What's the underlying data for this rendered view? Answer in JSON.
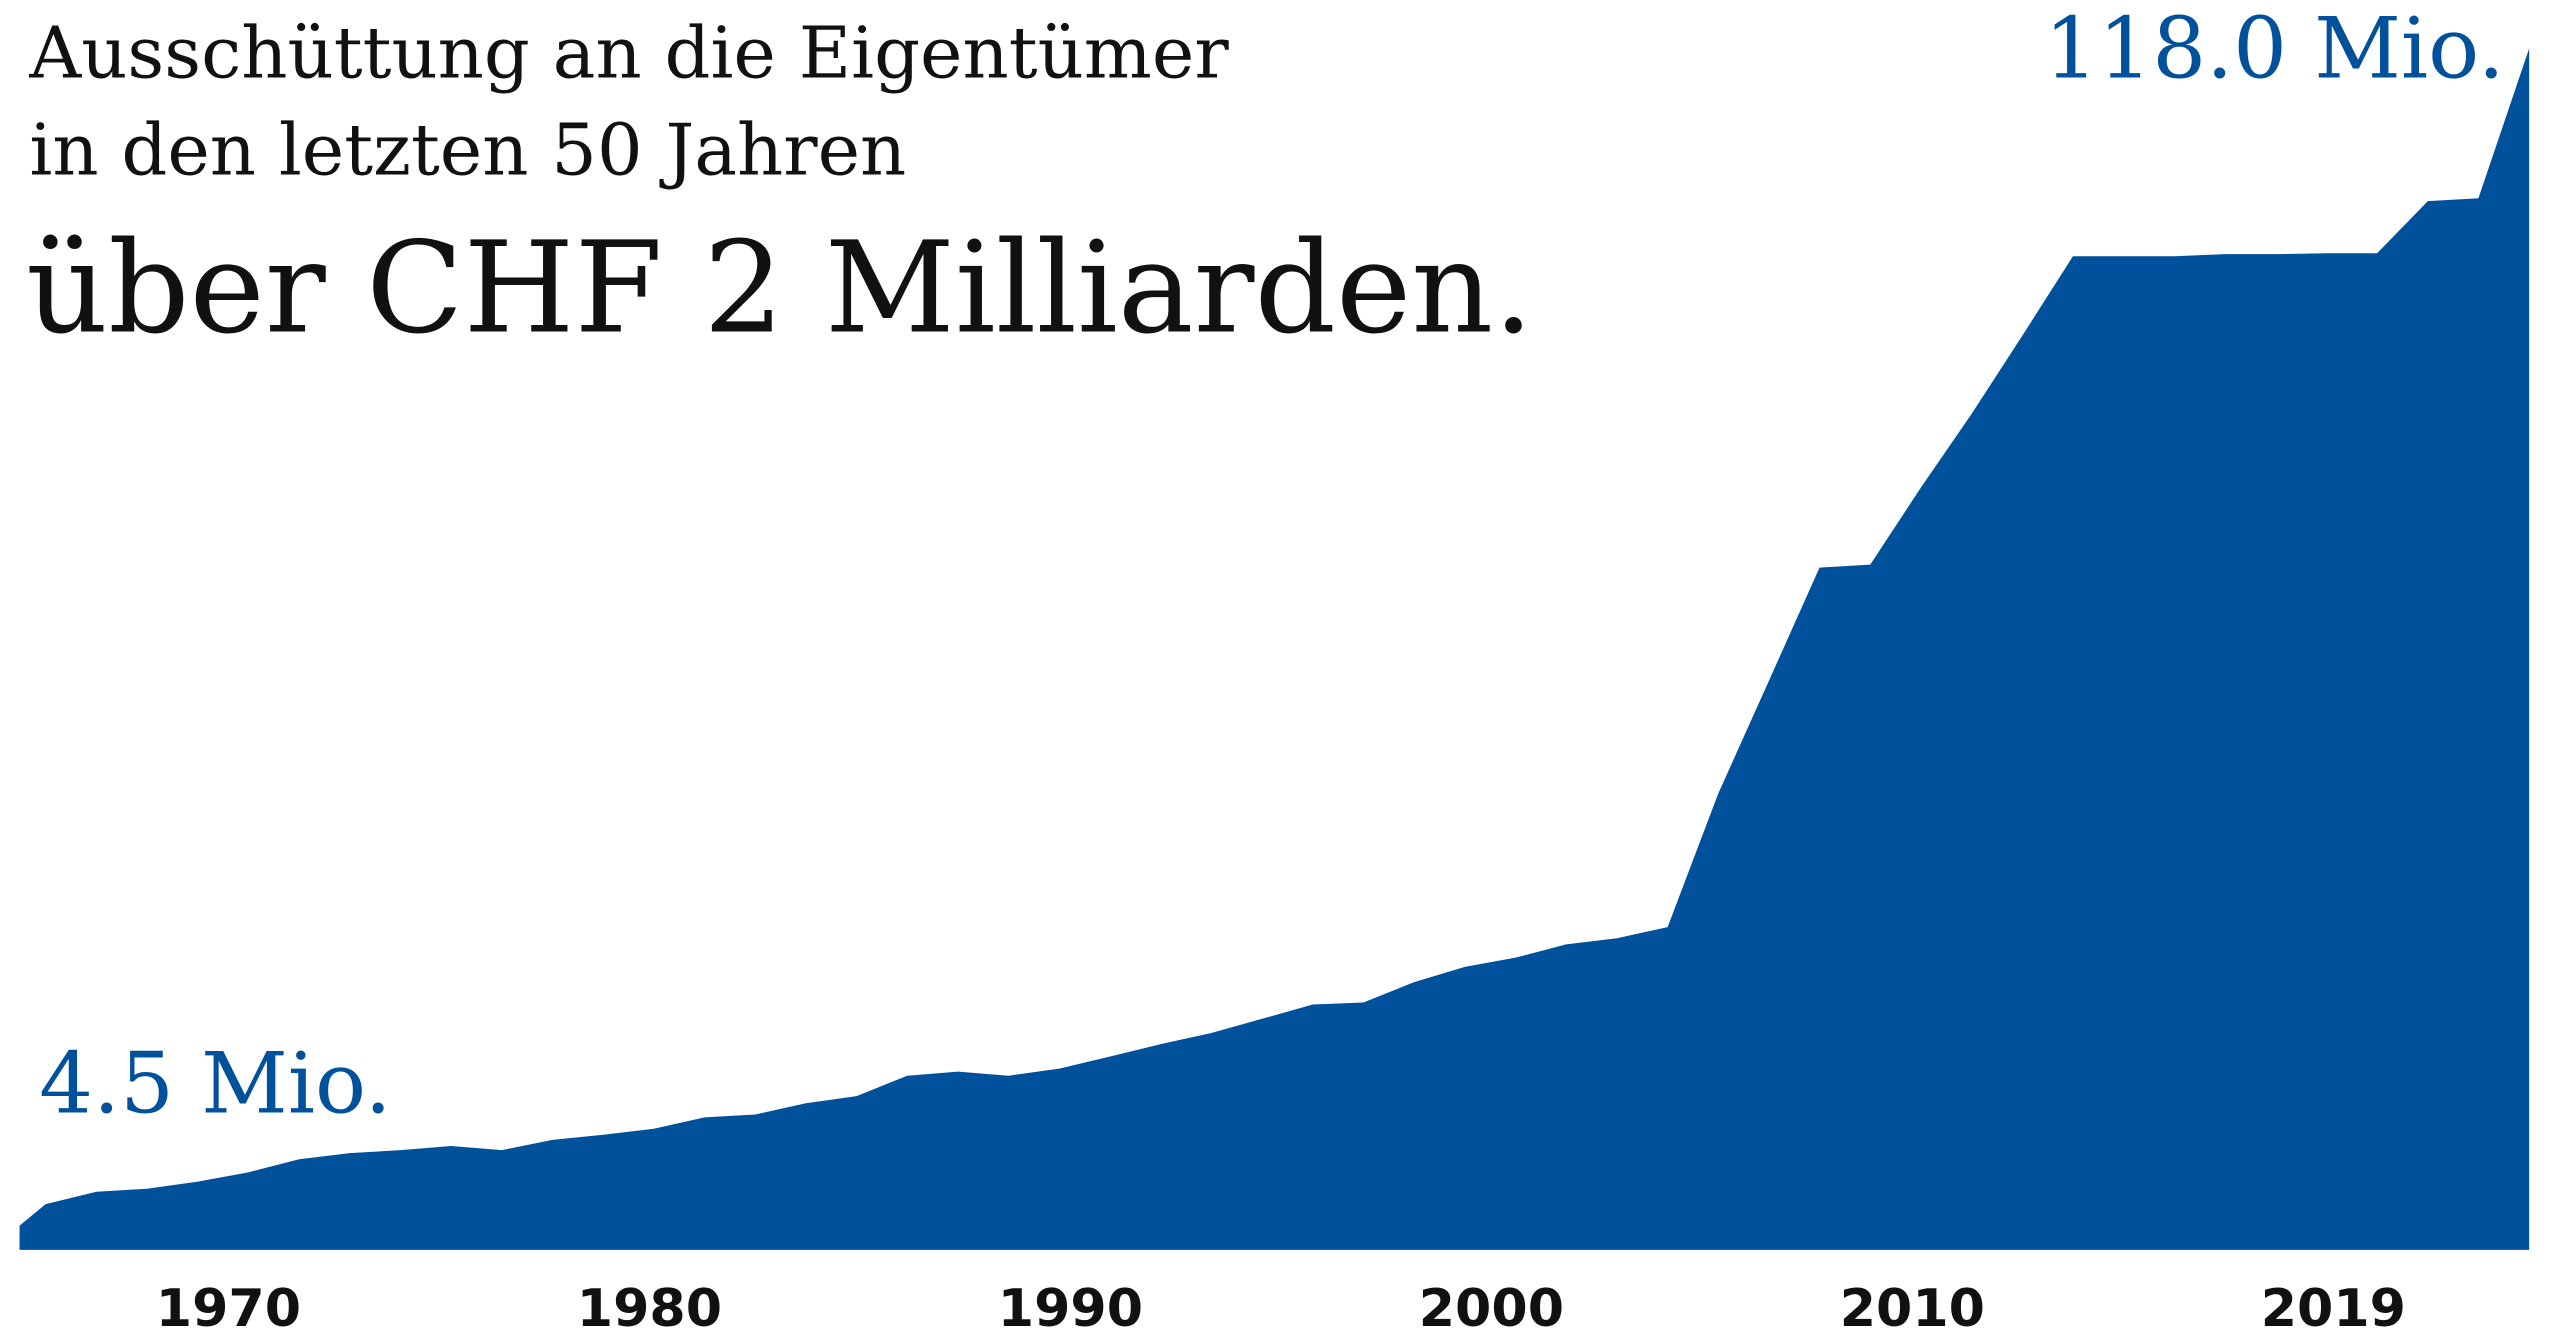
{
  "chart_data": {
    "type": "area",
    "title": "Ausschüttung an die Eigentümer",
    "subtitle": "in den letzten 50 Jahren",
    "headline": "über CHF 2 Milliarden.",
    "color": "#00519c",
    "values": [
      4.5,
      5.7,
      6.0,
      6.7,
      7.6,
      8.9,
      9.5,
      9.8,
      10.2,
      9.8,
      10.8,
      11.3,
      11.9,
      13.0,
      13.3,
      14.4,
      15.1,
      17.1,
      17.5,
      17.1,
      17.8,
      19.0,
      20.2,
      21.3,
      22.7,
      24.1,
      24.3,
      26.3,
      27.8,
      28.7,
      30.0,
      30.6,
      31.7,
      44.8,
      55.9,
      67.0,
      67.3,
      74.9,
      82.1,
      89.8,
      97.6,
      97.6,
      97.6,
      97.8,
      97.8,
      97.9,
      97.9,
      103.0,
      103.3,
      118.0
    ],
    "value_labels": [
      "4.5 Mio.",
      null,
      null,
      null,
      null,
      null,
      null,
      null,
      null,
      null,
      null,
      null,
      null,
      null,
      null,
      null,
      null,
      null,
      null,
      null,
      null,
      null,
      null,
      null,
      null,
      null,
      null,
      null,
      null,
      null,
      null,
      null,
      null,
      null,
      null,
      null,
      null,
      null,
      null,
      null,
      null,
      null,
      null,
      null,
      null,
      null,
      null,
      null,
      null,
      "118.0 Mio."
    ],
    "x_labels": [
      "1970",
      "1980",
      "1990",
      "2000",
      "2010",
      "2019"
    ],
    "ylim": [
      0,
      118
    ]
  }
}
